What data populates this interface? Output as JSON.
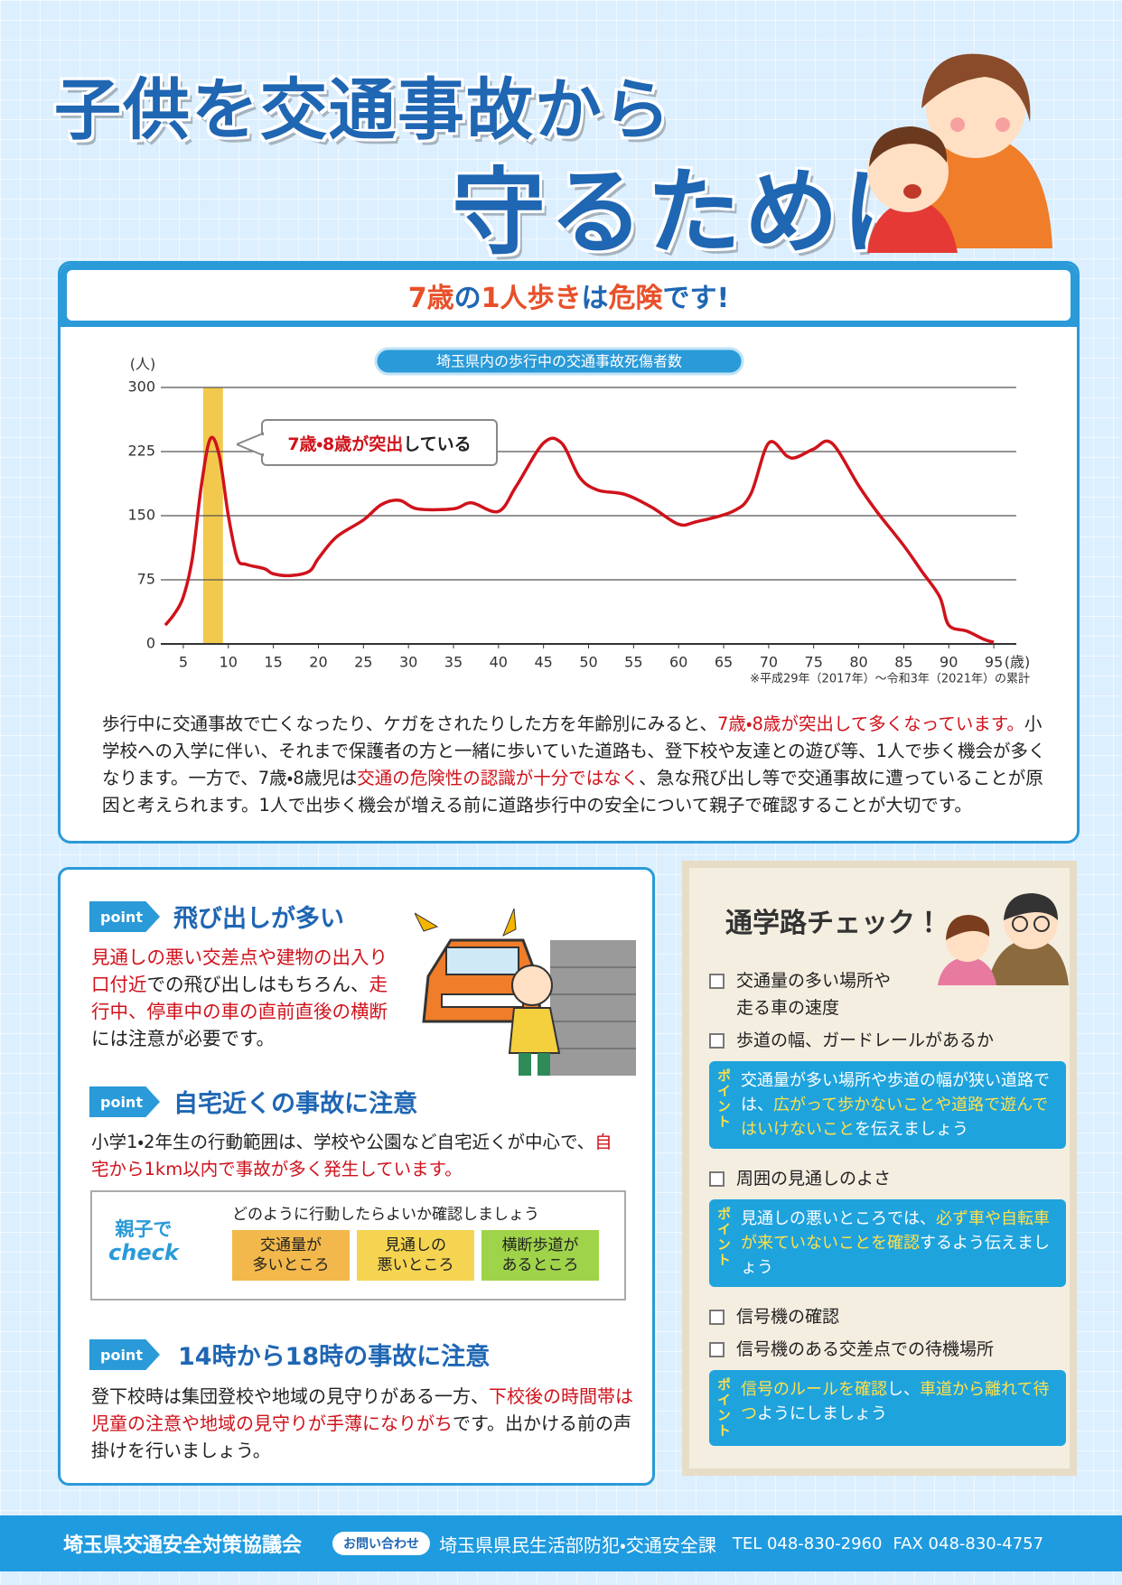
{
  "header": {
    "title_line1": "子供を交通事故から",
    "title_line2": "守るために"
  },
  "banner": [
    {
      "text": "7歳",
      "color": "#e8502a"
    },
    {
      "text": "の"
    },
    {
      "text": "1人歩き",
      "color": "#e8502a"
    },
    {
      "text": "は"
    },
    {
      "text": "危険",
      "color": "#e8502a"
    },
    {
      "text": "です!"
    }
  ],
  "chart_data": {
    "type": "line",
    "title": "埼玉県内の歩行中の交通事故死傷者数",
    "y_unit": "(人)",
    "x_unit": "(歳)",
    "note": "※平成29年（2017年）～令和3年（2021年）の累計",
    "annotation": [
      {
        "text": "7歳・8歳が突出",
        "color": "#d0121b"
      },
      {
        "text": "している"
      }
    ],
    "highlight_x": [
      7.2,
      9.4
    ],
    "highlight_color": "#f2c94c",
    "x": [
      3,
      4,
      5,
      6,
      7,
      8,
      9,
      10,
      11,
      12,
      14,
      15,
      17,
      19,
      20,
      22,
      25,
      27,
      29,
      31,
      35,
      37,
      40,
      42,
      45,
      47,
      49,
      51,
      54,
      57,
      60,
      62,
      66,
      68,
      70,
      72,
      73,
      75,
      77,
      80,
      82,
      85,
      87,
      89,
      90,
      92,
      94,
      95
    ],
    "series": [
      {
        "name": "死傷者数",
        "color": "#d0121b",
        "values": [
          22,
          35,
          55,
          100,
          185,
          240,
          220,
          150,
          100,
          93,
          88,
          82,
          80,
          85,
          100,
          125,
          145,
          163,
          168,
          158,
          158,
          165,
          155,
          185,
          235,
          235,
          195,
          180,
          175,
          160,
          140,
          143,
          155,
          175,
          235,
          220,
          218,
          228,
          235,
          185,
          155,
          115,
          85,
          55,
          22,
          15,
          5,
          2
        ]
      }
    ],
    "xlim": [
      2.5,
      97.5
    ],
    "ylim": [
      0,
      300
    ],
    "xticks": [
      5,
      10,
      15,
      20,
      25,
      30,
      35,
      40,
      45,
      50,
      55,
      60,
      65,
      70,
      75,
      80,
      85,
      90,
      95
    ],
    "yticks": [
      0,
      75,
      150,
      225,
      300
    ],
    "grid": true
  },
  "intro": [
    {
      "text": "歩行中に交通事故で亡くなったり、ケガをされたりした方を年齢別にみると、"
    },
    {
      "text": "7歳・8歳が突出して多くなっています。",
      "color": "#d0121b"
    },
    {
      "text": "小学校への入学に伴い、それまで保護者の方と一緒に歩いていた道路も、登下校や友達との遊び等、1人で歩く機会が多くなります。一方で、7歳・8歳児は"
    },
    {
      "text": "交通の危険性の認識が十分ではなく",
      "color": "#d0121b"
    },
    {
      "text": "、急な飛び出し等で交通事故に遭っていることが原因と考えられます。1人で出歩く機会が増える前に道路歩行中の安全について親子で確認することが大切です。"
    }
  ],
  "points": [
    {
      "badge": "point",
      "heading": "飛び出しが多い",
      "body": [
        {
          "text": "見通しの悪い交差点や建物の出入り口付近",
          "color": "#d0121b"
        },
        {
          "text": "での飛び出しはもちろん、"
        },
        {
          "text": "走行中、停車中の車の直前直後の横断",
          "color": "#d0121b"
        },
        {
          "text": "には注意が必要です。"
        }
      ]
    },
    {
      "badge": "point",
      "heading": "自宅近くの事故に注意",
      "body": [
        {
          "text": "小学1・2年生の行動範囲は、学校や公園など自宅近くが中心で、"
        },
        {
          "text": "自宅から1km以内で事故が多く発生しています。",
          "color": "#d0121b"
        }
      ]
    },
    {
      "badge": "point",
      "heading": "14時から18時の事故に注意",
      "body": [
        {
          "text": "登下校時は集団登校や地域の見守りがある一方、"
        },
        {
          "text": "下校後の時間帯は児童の注意や地域の見守りが手薄になりがち",
          "color": "#d0121b"
        },
        {
          "text": "です。出かける前の声掛けを行いましょう。"
        }
      ]
    }
  ],
  "check": {
    "logo_line1": "親子で",
    "logo_line2": "check",
    "prompt": "どのように行動したらよいか確認しましょう",
    "options": [
      [
        "交通量が",
        "多いところ"
      ],
      [
        "見通しの",
        "悪いところ"
      ],
      [
        "横断歩道が",
        "あるところ"
      ]
    ]
  },
  "route_check": {
    "title": "通学路チェック！",
    "groups": [
      {
        "items": [
          [
            "交通量の多い場所や",
            "走る車の速度"
          ],
          [
            "歩道の幅、ガードレールがあるか"
          ]
        ],
        "tip_label": "ポイント",
        "tip": [
          {
            "text": "交通量が多い場所や歩道の幅が狭い道路では、"
          },
          {
            "text": "広がって歩かないことや道路で遊んではいけないこと",
            "color": "#ffe14a"
          },
          {
            "text": "を伝えましょう"
          }
        ]
      },
      {
        "items": [
          [
            "周囲の見通しのよさ"
          ]
        ],
        "tip_label": "ポイント",
        "tip": [
          {
            "text": "見通しの悪いところでは、"
          },
          {
            "text": "必ず車や自転車が来ていないことを確認",
            "color": "#ffe14a"
          },
          {
            "text": "するよう伝えましょう"
          }
        ]
      },
      {
        "items": [
          [
            "信号機の確認"
          ],
          [
            "信号機のある交差点での待機場所"
          ]
        ],
        "tip_label": "ポイント",
        "tip": [
          {
            "text": "信号のルールを確認",
            "color": "#ffe14a"
          },
          {
            "text": "し、"
          },
          {
            "text": "車道から離れて待つ",
            "color": "#ffe14a"
          },
          {
            "text": "ようにしましょう"
          }
        ]
      }
    ]
  },
  "footer": {
    "org": "埼玉県交通安全対策協議会",
    "contact_label": "お問い合わせ",
    "dept": "埼玉県県民生活部防犯・交通安全課",
    "tel": "TEL 048-830-2960",
    "fax": "FAX 048-830-4757"
  }
}
